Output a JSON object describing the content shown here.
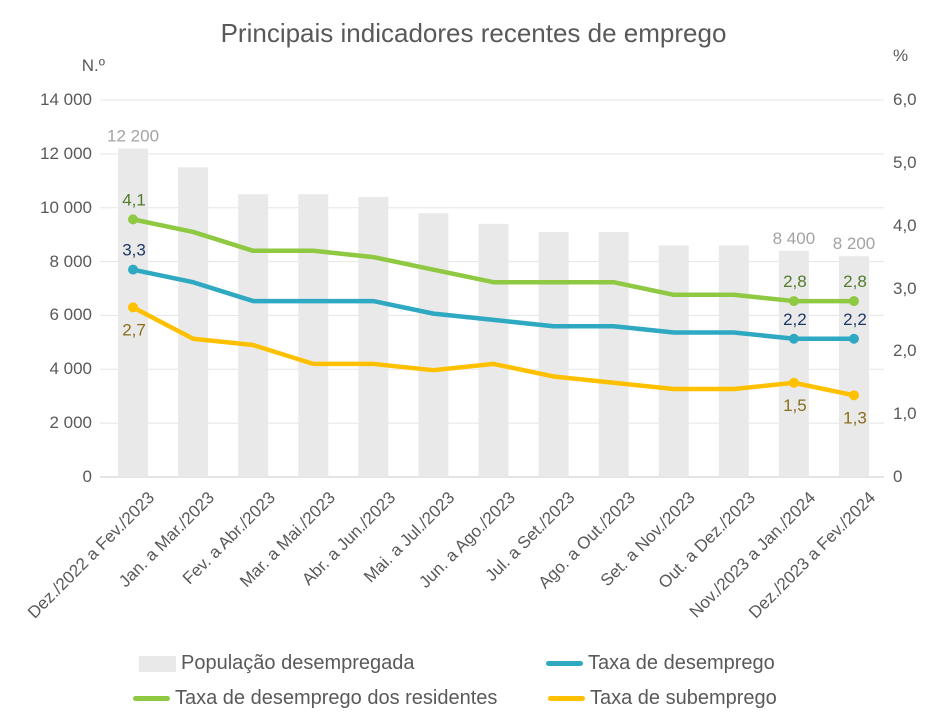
{
  "header": {
    "title": "Principais indicadores recentes de emprego"
  },
  "axes": {
    "left_unit": "N.º",
    "right_unit": "%",
    "left_ticks": [
      {
        "v": 14000,
        "label": "14 000"
      },
      {
        "v": 12000,
        "label": "12 000"
      },
      {
        "v": 10000,
        "label": "10 000"
      },
      {
        "v": 8000,
        "label": "8 000"
      },
      {
        "v": 6000,
        "label": "6 000"
      },
      {
        "v": 4000,
        "label": "4 000"
      },
      {
        "v": 2000,
        "label": "2 000"
      },
      {
        "v": 0,
        "label": "0"
      }
    ],
    "right_ticks": [
      {
        "v": 6,
        "label": "6,0"
      },
      {
        "v": 5,
        "label": "5,0"
      },
      {
        "v": 4,
        "label": "4,0"
      },
      {
        "v": 3,
        "label": "3,0"
      },
      {
        "v": 2,
        "label": "2,0"
      },
      {
        "v": 1,
        "label": "1,0"
      },
      {
        "v": 0,
        "label": "0"
      }
    ]
  },
  "chart_data": {
    "type": "combo-bar-line",
    "title": "Principais indicadores recentes de emprego",
    "categories": [
      "Dez./2022 a Fev./2023",
      "Jan. a Mar./2023",
      "Fev. a Abr./2023",
      "Mar. a Mai./2023",
      "Abr. a Jun./2023",
      "Mai. a Jul./2023",
      "Jun. a Ago./2023",
      "Jul. a Set./2023",
      "Ago. a Out./2023",
      "Set. a Nov./2023",
      "Out. a Dez./2023",
      "Nov./2023 a Jan./2024",
      "Dez./2023 a Fev./2024"
    ],
    "left_axis": {
      "title": "N.º",
      "min": 0,
      "max": 14000,
      "gridline_step": 2000
    },
    "right_axis": {
      "title": "%",
      "min": 0,
      "max": 6
    },
    "grid": true,
    "legend_position": "bottom",
    "series": [
      {
        "name": "População desempregada",
        "type": "bar",
        "axis": "left",
        "color": "#E9E9E9",
        "label_color": "#A3A3A3",
        "values": [
          12200,
          11500,
          10500,
          10500,
          10400,
          9800,
          9400,
          9100,
          9100,
          8600,
          8600,
          8400,
          8200
        ],
        "data_labels": {
          "0": "12 200",
          "11": "8 400",
          "12": "8 200"
        }
      },
      {
        "name": "Taxa de desemprego",
        "type": "line",
        "axis": "right",
        "color": "#2FA9C2",
        "label_color": "#1F3864",
        "label_side": "above",
        "values": [
          3.3,
          3.1,
          2.8,
          2.8,
          2.8,
          2.6,
          2.5,
          2.4,
          2.4,
          2.3,
          2.3,
          2.2,
          2.2
        ],
        "marker_indices": [
          0,
          11,
          12
        ],
        "data_labels": {
          "0": "3,3",
          "11": "2,2",
          "12": "2,2"
        }
      },
      {
        "name": "Taxa de desemprego dos residentes",
        "type": "line",
        "axis": "right",
        "color": "#8FC841",
        "label_color": "#507C2B",
        "label_side": "above",
        "values": [
          4.1,
          3.9,
          3.6,
          3.6,
          3.5,
          3.3,
          3.1,
          3.1,
          3.1,
          2.9,
          2.9,
          2.8,
          2.8
        ],
        "marker_indices": [
          0,
          11,
          12
        ],
        "data_labels": {
          "0": "4,1",
          "11": "2,8",
          "12": "2,8"
        }
      },
      {
        "name": "Taxa de subemprego",
        "type": "line",
        "axis": "right",
        "color": "#FFC000",
        "label_color": "#8A6D1D",
        "label_side": "below",
        "values": [
          2.7,
          2.2,
          2.1,
          1.8,
          1.8,
          1.7,
          1.8,
          1.6,
          1.5,
          1.4,
          1.4,
          1.5,
          1.3
        ],
        "marker_indices": [
          0,
          11,
          12
        ],
        "data_labels": {
          "0": "2,7",
          "11": "1,5",
          "12": "1,3"
        }
      }
    ]
  },
  "legend": {
    "items": [
      {
        "label": "População desempregada",
        "swatch": "bar",
        "color": "#E9E9E9"
      },
      {
        "label": "Taxa de desemprego",
        "swatch": "line",
        "color": "#2FA9C2"
      },
      {
        "label": "Taxa de desemprego dos residentes",
        "swatch": "line",
        "color": "#8FC841"
      },
      {
        "label": "Taxa de subemprego",
        "swatch": "line",
        "color": "#FFC000"
      }
    ]
  },
  "colors": {
    "text": "#595959",
    "grid": "#E5E5E5",
    "axis_line": "#D4D4D4"
  }
}
